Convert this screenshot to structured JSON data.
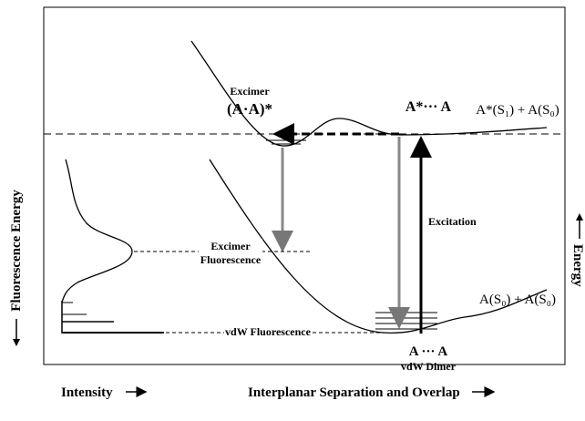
{
  "labels": {
    "excimer_title": "Excimer",
    "excimer_state": "(A·A)*",
    "pair_excited": "A*··· A",
    "separated_excited": "A*(S₁) + A(S₀)",
    "excitation": "Excitation",
    "excimer_fluorescence_1": "Excimer",
    "excimer_fluorescence_2": "Fluorescence",
    "vdw_fluorescence": "vdW Fluorescence",
    "separated_ground": "A(S₀) + A(S₀)",
    "pair_ground": "A ··· A",
    "vdw_dimer": "vdW Dimer"
  },
  "axes": {
    "left": "Fluorescence Energy",
    "right": "Energy",
    "bottom_left": "Intensity",
    "bottom_right": "Interplanar Separation and Overlap"
  }
}
